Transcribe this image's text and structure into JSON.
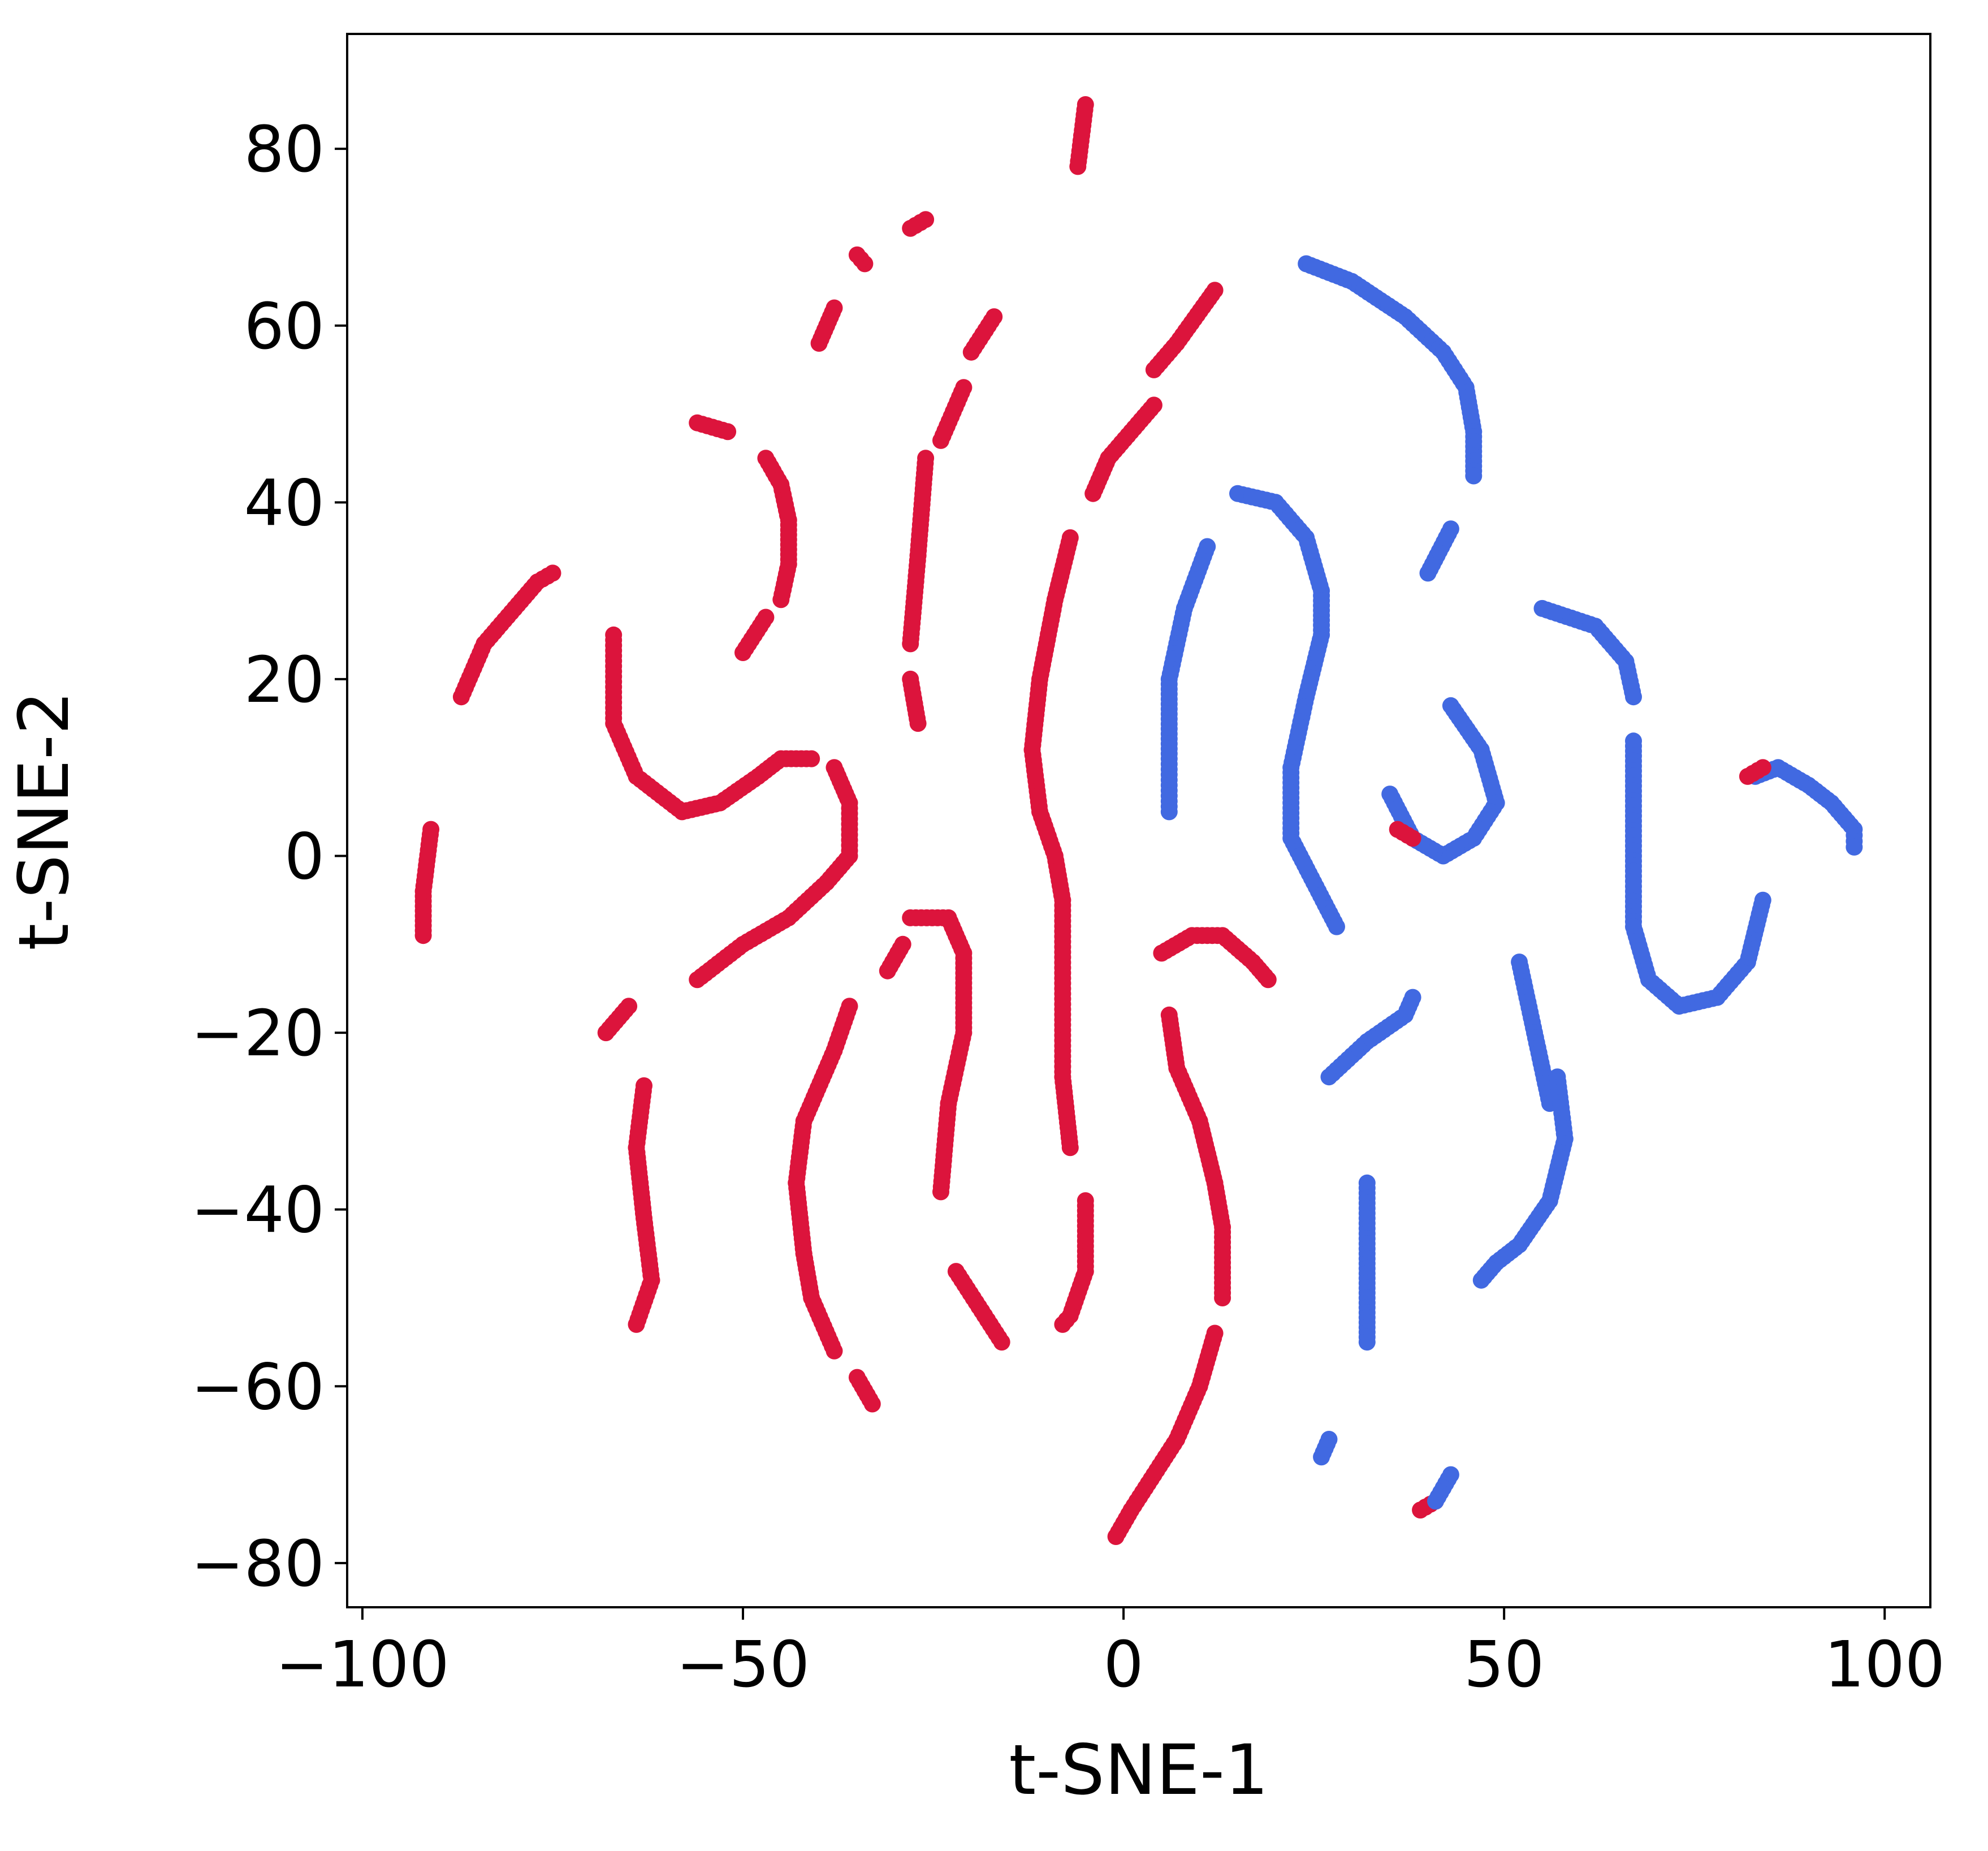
{
  "chart_data": {
    "type": "scatter",
    "title": "",
    "xlabel": "t-SNE-1",
    "ylabel": "t-SNE-2",
    "xlim": [
      -102,
      106
    ],
    "ylim": [
      -85,
      93
    ],
    "x_ticks": [
      -100,
      -50,
      0,
      50,
      100
    ],
    "x_tick_labels": [
      "−100",
      "−50",
      "0",
      "50",
      "100"
    ],
    "y_ticks": [
      -80,
      -60,
      -40,
      -20,
      0,
      20,
      40,
      60,
      80
    ],
    "y_tick_labels": [
      "−80",
      "−60",
      "−40",
      "−20",
      "0",
      "20",
      "40",
      "60",
      "80"
    ],
    "grid": false,
    "legend": "none",
    "colors": {
      "red": "#dc143c",
      "blue": "#4169e1"
    },
    "strands": [
      {
        "c": "red",
        "pts": [
          [
            -6,
            78
          ],
          [
            -5,
            85
          ]
        ]
      },
      {
        "c": "red",
        "pts": [
          [
            -28,
            71
          ],
          [
            -26,
            72
          ]
        ]
      },
      {
        "c": "red",
        "pts": [
          [
            -34,
            67
          ],
          [
            -35,
            68
          ]
        ]
      },
      {
        "c": "red",
        "pts": [
          [
            -40,
            58
          ],
          [
            -38,
            62
          ]
        ]
      },
      {
        "c": "red",
        "pts": [
          [
            -20,
            57
          ],
          [
            -17,
            61
          ]
        ]
      },
      {
        "c": "red",
        "pts": [
          [
            -56,
            49
          ],
          [
            -52,
            48
          ]
        ]
      },
      {
        "c": "red",
        "pts": [
          [
            -24,
            47
          ],
          [
            -21,
            53
          ]
        ]
      },
      {
        "c": "red",
        "pts": [
          [
            -27,
            34
          ],
          [
            -26,
            45
          ]
        ]
      },
      {
        "c": "red",
        "pts": [
          [
            -28,
            24
          ],
          [
            -27,
            34
          ]
        ]
      },
      {
        "c": "red",
        "pts": [
          [
            -27,
            15
          ],
          [
            -28,
            20
          ]
        ]
      },
      {
        "c": "red",
        "pts": [
          [
            -47,
            45
          ],
          [
            -45,
            42
          ],
          [
            -44,
            38
          ],
          [
            -44,
            33
          ],
          [
            -45,
            29
          ]
        ]
      },
      {
        "c": "red",
        "pts": [
          [
            -50,
            23
          ],
          [
            -47,
            27
          ]
        ]
      },
      {
        "c": "red",
        "pts": [
          [
            -87,
            18
          ],
          [
            -84,
            24
          ],
          [
            -80,
            28
          ],
          [
            -77,
            31
          ],
          [
            -75,
            32
          ]
        ]
      },
      {
        "c": "red",
        "pts": [
          [
            -67,
            25
          ],
          [
            -67,
            15
          ],
          [
            -64,
            9
          ],
          [
            -58,
            5
          ],
          [
            -53,
            6
          ],
          [
            -48,
            9
          ],
          [
            -45,
            11
          ],
          [
            -41,
            11
          ]
        ]
      },
      {
        "c": "red",
        "pts": [
          [
            -91,
            3
          ],
          [
            -92,
            -4
          ],
          [
            -92,
            -9
          ]
        ]
      },
      {
        "c": "red",
        "pts": [
          [
            -38,
            10
          ],
          [
            -36,
            6
          ],
          [
            -36,
            0
          ],
          [
            -39,
            -3
          ],
          [
            -44,
            -7
          ],
          [
            -50,
            -10
          ],
          [
            -56,
            -14
          ]
        ]
      },
      {
        "c": "red",
        "pts": [
          [
            -68,
            -20
          ],
          [
            -65,
            -17
          ]
        ]
      },
      {
        "c": "red",
        "pts": [
          [
            -63,
            -26
          ],
          [
            -64,
            -33
          ],
          [
            -63,
            -41
          ],
          [
            -62,
            -48
          ],
          [
            -64,
            -53
          ]
        ]
      },
      {
        "c": "red",
        "pts": [
          [
            -36,
            -17
          ],
          [
            -38,
            -22
          ],
          [
            -42,
            -30
          ],
          [
            -43,
            -37
          ],
          [
            -42,
            -45
          ]
        ]
      },
      {
        "c": "red",
        "pts": [
          [
            -42,
            -45
          ],
          [
            -41,
            -50
          ],
          [
            -38,
            -56
          ]
        ]
      },
      {
        "c": "red",
        "pts": [
          [
            -35,
            -59
          ],
          [
            -33,
            -62
          ]
        ]
      },
      {
        "c": "red",
        "pts": [
          [
            -31,
            -13
          ],
          [
            -29,
            -10
          ]
        ]
      },
      {
        "c": "red",
        "pts": [
          [
            -28,
            -7
          ],
          [
            -23,
            -7
          ],
          [
            -21,
            -11
          ],
          [
            -21,
            -20
          ],
          [
            -23,
            -28
          ],
          [
            -24,
            -38
          ]
        ]
      },
      {
        "c": "red",
        "pts": [
          [
            -22,
            -47
          ],
          [
            -19,
            -51
          ],
          [
            -16,
            -55
          ]
        ]
      },
      {
        "c": "red",
        "pts": [
          [
            12,
            64
          ],
          [
            7,
            58
          ],
          [
            4,
            55
          ]
        ]
      },
      {
        "c": "red",
        "pts": [
          [
            4,
            51
          ],
          [
            -2,
            45
          ],
          [
            -4,
            41
          ]
        ]
      },
      {
        "c": "red",
        "pts": [
          [
            -7,
            36
          ],
          [
            -9,
            29
          ],
          [
            -11,
            20
          ],
          [
            -12,
            12
          ],
          [
            -11,
            5
          ],
          [
            -9,
            0
          ],
          [
            -8,
            -5
          ],
          [
            -8,
            -15
          ],
          [
            -8,
            -25
          ],
          [
            -7,
            -33
          ]
        ]
      },
      {
        "c": "red",
        "pts": [
          [
            -5,
            -39
          ],
          [
            -5,
            -47
          ],
          [
            -7,
            -52
          ],
          [
            -8,
            -53
          ]
        ]
      },
      {
        "c": "red",
        "pts": [
          [
            5,
            -11
          ],
          [
            9,
            -9
          ],
          [
            13,
            -9
          ],
          [
            17,
            -12
          ],
          [
            19,
            -14
          ]
        ]
      },
      {
        "c": "red",
        "pts": [
          [
            6,
            -18
          ],
          [
            7,
            -24
          ],
          [
            10,
            -30
          ],
          [
            12,
            -37
          ],
          [
            13,
            -42
          ],
          [
            13,
            -50
          ]
        ]
      },
      {
        "c": "red",
        "pts": [
          [
            12,
            -54
          ],
          [
            10,
            -60
          ],
          [
            7,
            -66
          ],
          [
            4,
            -70
          ],
          [
            1,
            -74
          ],
          [
            -1,
            -77
          ]
        ]
      },
      {
        "c": "red",
        "pts": [
          [
            39,
            -74
          ],
          [
            41,
            -73
          ]
        ]
      },
      {
        "c": "blue",
        "pts": [
          [
            43,
            -70
          ],
          [
            41,
            -73
          ]
        ]
      },
      {
        "c": "blue",
        "pts": [
          [
            26,
            -68
          ],
          [
            27,
            -66
          ]
        ]
      },
      {
        "c": "blue",
        "pts": [
          [
            11,
            35
          ],
          [
            8,
            28
          ],
          [
            6,
            20
          ],
          [
            6,
            11
          ],
          [
            6,
            5
          ]
        ]
      },
      {
        "c": "blue",
        "pts": [
          [
            15,
            41
          ],
          [
            20,
            40
          ],
          [
            24,
            36
          ],
          [
            26,
            30
          ],
          [
            26,
            25
          ],
          [
            24,
            18
          ],
          [
            22,
            10
          ],
          [
            22,
            2
          ],
          [
            25,
            -3
          ],
          [
            28,
            -8
          ]
        ]
      },
      {
        "c": "blue",
        "pts": [
          [
            24,
            67
          ],
          [
            30,
            65
          ],
          [
            37,
            61
          ],
          [
            42,
            57
          ],
          [
            45,
            53
          ],
          [
            46,
            48
          ],
          [
            46,
            43
          ]
        ]
      },
      {
        "c": "blue",
        "pts": [
          [
            40,
            32
          ],
          [
            43,
            37
          ]
        ]
      },
      {
        "c": "blue",
        "pts": [
          [
            55,
            28
          ],
          [
            62,
            26
          ],
          [
            66,
            22
          ],
          [
            67,
            18
          ]
        ]
      },
      {
        "c": "blue",
        "pts": [
          [
            43,
            17
          ],
          [
            47,
            12
          ],
          [
            49,
            6
          ],
          [
            46,
            2
          ],
          [
            42,
            0
          ],
          [
            38,
            2
          ],
          [
            35,
            7
          ]
        ]
      },
      {
        "c": "red",
        "pts": [
          [
            36,
            3
          ],
          [
            38,
            2
          ]
        ]
      },
      {
        "c": "blue",
        "pts": [
          [
            67,
            13
          ],
          [
            67,
            0
          ],
          [
            67,
            -8
          ],
          [
            69,
            -14
          ],
          [
            73,
            -17
          ],
          [
            78,
            -16
          ],
          [
            82,
            -12
          ],
          [
            84,
            -5
          ]
        ]
      },
      {
        "c": "blue",
        "pts": [
          [
            83,
            9
          ],
          [
            86,
            10
          ],
          [
            90,
            8
          ],
          [
            93,
            6
          ],
          [
            96,
            3
          ],
          [
            96,
            1
          ]
        ]
      },
      {
        "c": "red",
        "pts": [
          [
            82,
            9
          ],
          [
            84,
            10
          ]
        ]
      },
      {
        "c": "blue",
        "pts": [
          [
            27,
            -25
          ],
          [
            32,
            -21
          ],
          [
            37,
            -18
          ],
          [
            38,
            -16
          ]
        ]
      },
      {
        "c": "blue",
        "pts": [
          [
            52,
            -12
          ],
          [
            54,
            -20
          ],
          [
            56,
            -28
          ]
        ]
      },
      {
        "c": "blue",
        "pts": [
          [
            57,
            -25
          ],
          [
            58,
            -32
          ],
          [
            56,
            -39
          ],
          [
            52,
            -44
          ],
          [
            49,
            -46
          ],
          [
            47,
            -48
          ]
        ]
      },
      {
        "c": "blue",
        "pts": [
          [
            32,
            -37
          ],
          [
            32,
            -45
          ],
          [
            32,
            -50
          ],
          [
            32,
            -55
          ]
        ]
      }
    ]
  }
}
